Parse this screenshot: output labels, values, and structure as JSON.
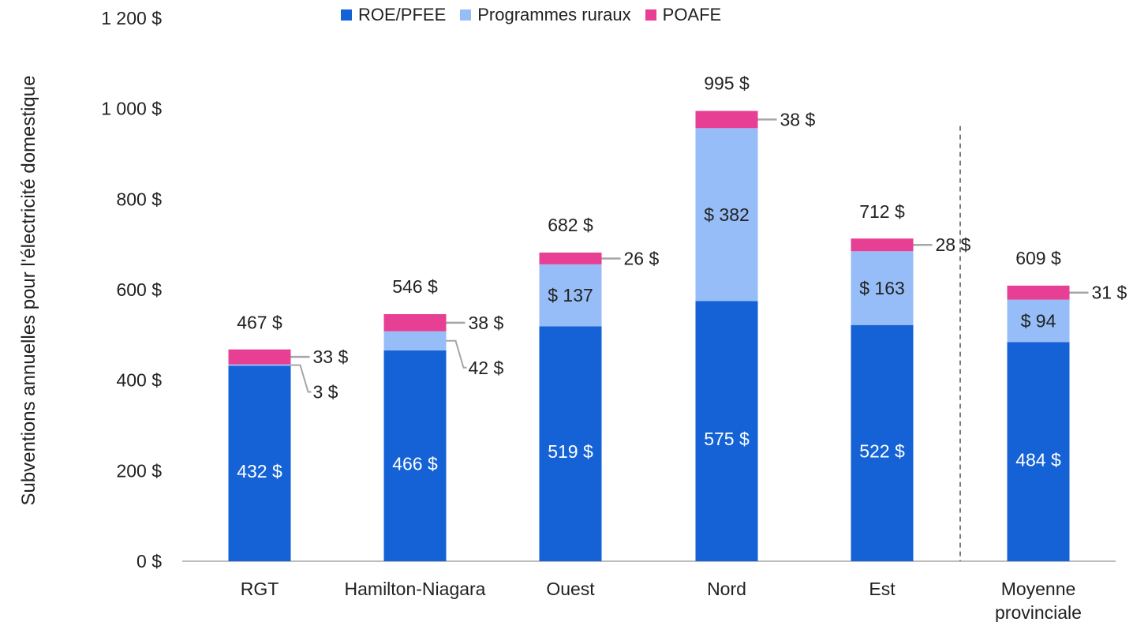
{
  "chart_data": {
    "type": "bar",
    "stacked": true,
    "categories": [
      "RGT",
      "Hamilton-Niagara",
      "Ouest",
      "Nord",
      "Est",
      "Moyenne provinciale"
    ],
    "category_lines": [
      [
        "RGT"
      ],
      [
        "Hamilton-Niagara"
      ],
      [
        "Ouest"
      ],
      [
        "Nord"
      ],
      [
        "Est"
      ],
      [
        "Moyenne",
        "provinciale"
      ]
    ],
    "series": [
      {
        "name": "ROE/PFEE",
        "color": "#1462d6",
        "values": [
          432,
          466,
          519,
          575,
          522,
          484
        ],
        "labels": [
          "432 $",
          "466 $",
          "519 $",
          "575 $",
          "522 $",
          "484 $"
        ]
      },
      {
        "name": "Programmes ruraux",
        "color": "#96bdf7",
        "values": [
          3,
          42,
          137,
          382,
          163,
          94
        ],
        "labels": [
          "3 $",
          "42 $",
          "$ 137",
          "$ 382",
          "$ 163",
          "$ 94"
        ]
      },
      {
        "name": "POAFE",
        "color": "#e63f94",
        "values": [
          33,
          38,
          26,
          38,
          28,
          31
        ],
        "labels": [
          "33 $",
          "38 $",
          "26 $",
          "38 $",
          "28 $",
          "31 $"
        ]
      }
    ],
    "totals": [
      467,
      546,
      682,
      995,
      712,
      609
    ],
    "total_labels": [
      "467 $",
      "546 $",
      "682 $",
      "995 $",
      "712 $",
      "609 $"
    ],
    "ylabel": "Subventions annuelles pour l'électricité domestique",
    "ylim": [
      0,
      1200
    ],
    "yticks": [
      0,
      200,
      400,
      600,
      800,
      1000,
      1200
    ],
    "ytick_labels": [
      "0 $",
      "200 $",
      "400 $",
      "600 $",
      "800 $",
      "1 000 $",
      "1 200 $"
    ],
    "grid": false,
    "legend_position": "top",
    "separator_before_category": "Moyenne provinciale"
  }
}
